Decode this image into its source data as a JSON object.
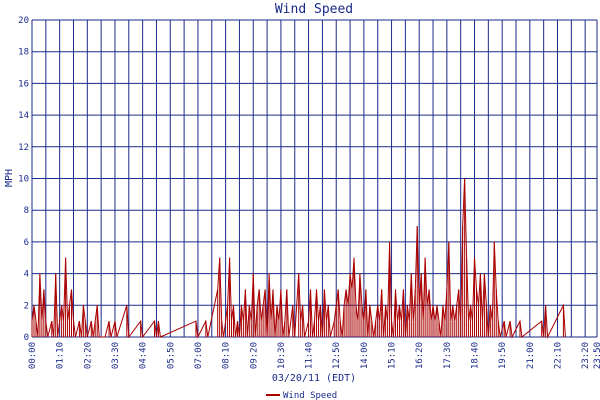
{
  "chart_data": {
    "type": "line",
    "title": "Wind Speed",
    "xlabel": "03/20/11 (EDT)",
    "ylabel": "MPH",
    "ylim": [
      0,
      20
    ],
    "yticks": [
      "0",
      "2",
      "4",
      "6",
      "8",
      "10",
      "12",
      "14",
      "16",
      "18",
      "20"
    ],
    "xticks": [
      "00:00",
      "01:10",
      "02:20",
      "03:30",
      "04:40",
      "05:50",
      "07:00",
      "08:10",
      "09:20",
      "10:30",
      "11:40",
      "12:50",
      "14:00",
      "15:10",
      "16:20",
      "17:30",
      "18:40",
      "19:50",
      "21:00",
      "22:10",
      "23:20",
      "23:50"
    ],
    "xrange_minutes": [
      0,
      1430
    ],
    "grid": true,
    "legend_position": "bottom-center",
    "colors": {
      "series": "#aa0000",
      "grid": "#1a2a8a",
      "text": "#1a2a8a"
    },
    "series": [
      {
        "name": "Wind Speed",
        "points": [
          [
            0,
            1
          ],
          [
            5,
            2
          ],
          [
            10,
            1
          ],
          [
            15,
            0
          ],
          [
            20,
            4
          ],
          [
            25,
            1
          ],
          [
            30,
            3
          ],
          [
            35,
            1
          ],
          [
            40,
            0
          ],
          [
            50,
            1
          ],
          [
            55,
            0
          ],
          [
            60,
            4
          ],
          [
            65,
            0
          ],
          [
            75,
            2
          ],
          [
            80,
            1
          ],
          [
            85,
            5
          ],
          [
            90,
            1
          ],
          [
            95,
            2
          ],
          [
            100,
            3
          ],
          [
            105,
            1
          ],
          [
            110,
            0
          ],
          [
            120,
            1
          ],
          [
            125,
            0
          ],
          [
            130,
            2
          ],
          [
            135,
            1
          ],
          [
            140,
            0
          ],
          [
            150,
            1
          ],
          [
            155,
            0
          ],
          [
            160,
            1
          ],
          [
            165,
            2
          ],
          [
            170,
            0
          ],
          [
            185,
            0
          ],
          [
            195,
            1
          ],
          [
            200,
            0
          ],
          [
            210,
            1
          ],
          [
            215,
            0
          ],
          [
            240,
            2
          ],
          [
            245,
            0
          ],
          [
            275,
            1
          ],
          [
            280,
            0
          ],
          [
            310,
            1
          ],
          [
            315,
            0
          ],
          [
            320,
            1
          ],
          [
            325,
            0
          ],
          [
            415,
            1
          ],
          [
            420,
            0
          ],
          [
            440,
            1
          ],
          [
            445,
            0
          ],
          [
            470,
            3
          ],
          [
            475,
            5
          ],
          [
            480,
            1
          ],
          [
            485,
            0
          ],
          [
            495,
            2
          ],
          [
            500,
            5
          ],
          [
            505,
            1
          ],
          [
            510,
            2
          ],
          [
            515,
            0
          ],
          [
            520,
            1
          ],
          [
            525,
            0
          ],
          [
            530,
            2
          ],
          [
            535,
            1
          ],
          [
            540,
            3
          ],
          [
            545,
            0
          ],
          [
            550,
            2
          ],
          [
            555,
            1
          ],
          [
            560,
            4
          ],
          [
            565,
            0
          ],
          [
            570,
            2
          ],
          [
            575,
            3
          ],
          [
            580,
            1
          ],
          [
            585,
            2
          ],
          [
            590,
            3
          ],
          [
            595,
            0
          ],
          [
            600,
            4
          ],
          [
            605,
            1
          ],
          [
            610,
            3
          ],
          [
            615,
            0
          ],
          [
            620,
            2
          ],
          [
            625,
            1
          ],
          [
            630,
            3
          ],
          [
            635,
            0
          ],
          [
            640,
            1
          ],
          [
            645,
            3
          ],
          [
            650,
            0
          ],
          [
            660,
            2
          ],
          [
            665,
            0
          ],
          [
            675,
            4
          ],
          [
            680,
            1
          ],
          [
            685,
            2
          ],
          [
            690,
            0
          ],
          [
            700,
            1
          ],
          [
            705,
            3
          ],
          [
            710,
            0
          ],
          [
            715,
            1
          ],
          [
            720,
            3
          ],
          [
            725,
            1
          ],
          [
            730,
            2
          ],
          [
            735,
            0
          ],
          [
            740,
            3
          ],
          [
            745,
            1
          ],
          [
            750,
            2
          ],
          [
            755,
            0
          ],
          [
            765,
            1
          ],
          [
            770,
            2
          ],
          [
            775,
            3
          ],
          [
            780,
            1
          ],
          [
            785,
            0
          ],
          [
            790,
            2
          ],
          [
            795,
            3
          ],
          [
            800,
            2
          ],
          [
            805,
            4
          ],
          [
            810,
            3
          ],
          [
            815,
            5
          ],
          [
            820,
            2
          ],
          [
            825,
            1
          ],
          [
            830,
            4
          ],
          [
            835,
            2
          ],
          [
            840,
            1
          ],
          [
            845,
            3
          ],
          [
            850,
            0
          ],
          [
            855,
            2
          ],
          [
            860,
            1
          ],
          [
            865,
            0
          ],
          [
            870,
            1
          ],
          [
            875,
            2
          ],
          [
            880,
            1
          ],
          [
            885,
            3
          ],
          [
            890,
            0
          ],
          [
            895,
            2
          ],
          [
            900,
            1
          ],
          [
            905,
            6
          ],
          [
            910,
            1
          ],
          [
            915,
            0
          ],
          [
            920,
            3
          ],
          [
            925,
            1
          ],
          [
            930,
            2
          ],
          [
            935,
            1
          ],
          [
            940,
            3
          ],
          [
            945,
            0
          ],
          [
            950,
            2
          ],
          [
            955,
            1
          ],
          [
            960,
            4
          ],
          [
            965,
            1
          ],
          [
            970,
            3
          ],
          [
            975,
            7
          ],
          [
            980,
            2
          ],
          [
            985,
            4
          ],
          [
            990,
            1
          ],
          [
            995,
            5
          ],
          [
            1000,
            2
          ],
          [
            1005,
            3
          ],
          [
            1010,
            1
          ],
          [
            1015,
            2
          ],
          [
            1020,
            1
          ],
          [
            1025,
            2
          ],
          [
            1030,
            1
          ],
          [
            1035,
            0
          ],
          [
            1040,
            2
          ],
          [
            1045,
            1
          ],
          [
            1050,
            3
          ],
          [
            1055,
            6
          ],
          [
            1060,
            1
          ],
          [
            1065,
            2
          ],
          [
            1070,
            1
          ],
          [
            1075,
            2
          ],
          [
            1080,
            3
          ],
          [
            1085,
            1
          ],
          [
            1090,
            7
          ],
          [
            1095,
            10
          ],
          [
            1100,
            5
          ],
          [
            1105,
            1
          ],
          [
            1110,
            2
          ],
          [
            1115,
            1
          ],
          [
            1120,
            5
          ],
          [
            1125,
            3
          ],
          [
            1130,
            2
          ],
          [
            1135,
            4
          ],
          [
            1140,
            1
          ],
          [
            1145,
            4
          ],
          [
            1150,
            2
          ],
          [
            1155,
            0
          ],
          [
            1160,
            2
          ],
          [
            1165,
            1
          ],
          [
            1170,
            6
          ],
          [
            1175,
            3
          ],
          [
            1180,
            1
          ],
          [
            1185,
            0
          ],
          [
            1195,
            1
          ],
          [
            1200,
            0
          ],
          [
            1210,
            1
          ],
          [
            1215,
            0
          ],
          [
            1235,
            1
          ],
          [
            1240,
            0
          ],
          [
            1290,
            1
          ],
          [
            1295,
            0
          ],
          [
            1300,
            2
          ],
          [
            1305,
            0
          ],
          [
            1345,
            2
          ],
          [
            1350,
            0
          ]
        ]
      }
    ]
  }
}
